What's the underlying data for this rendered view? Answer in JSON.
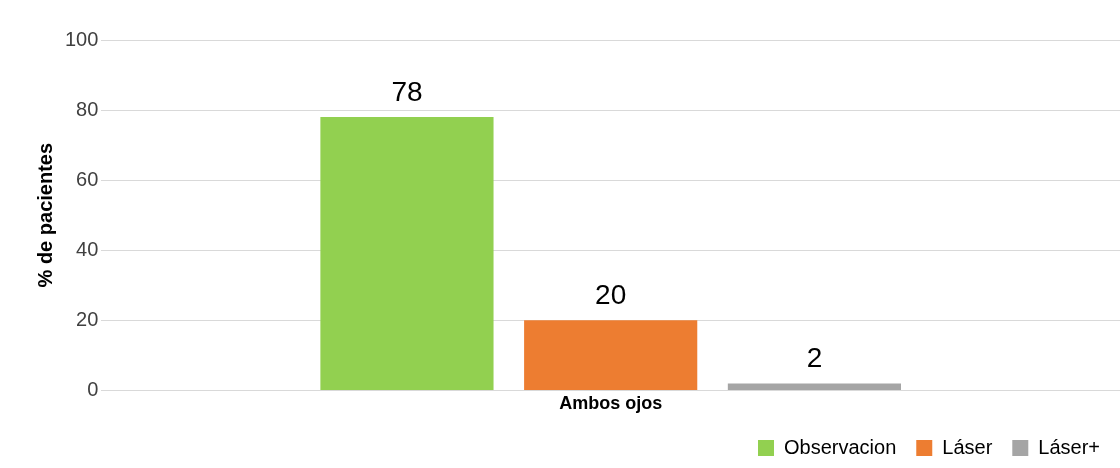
{
  "chart_data": {
    "type": "bar",
    "ylabel": "% de pacientes",
    "categories": [
      "Ambos ojos"
    ],
    "series": [
      {
        "name": "Observacion",
        "color": "#92d050",
        "values": [
          78
        ]
      },
      {
        "name": "Láser",
        "color": "#ed7d31",
        "values": [
          20
        ]
      },
      {
        "name": "Láser+",
        "color": "#a5a5a5",
        "values": [
          2
        ]
      }
    ],
    "ylim": [
      0,
      100
    ],
    "yticks": [
      0,
      20,
      40,
      60,
      80,
      100
    ],
    "grid": "y",
    "legend": "bottom",
    "data_labels": true
  }
}
